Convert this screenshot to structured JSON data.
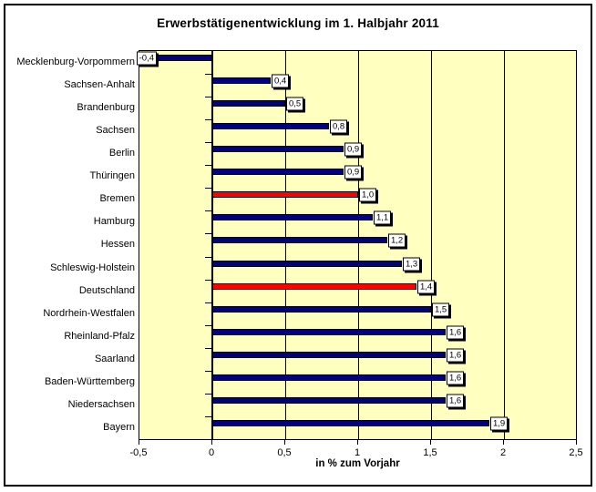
{
  "chart_data": {
    "type": "bar",
    "orientation": "horizontal",
    "title": "Erwerbstätigenentwicklung im 1. Halbjahr 2011",
    "xlabel": "in % zum Vorjahr",
    "xlim": [
      -0.5,
      2.5
    ],
    "grid": "vertical-major",
    "legend_position": "none",
    "xticks": [
      {
        "value": -0.5,
        "label": "-0,5"
      },
      {
        "value": 0,
        "label": "0"
      },
      {
        "value": 0.5,
        "label": "0,5"
      },
      {
        "value": 1,
        "label": "1"
      },
      {
        "value": 1.5,
        "label": "1,5"
      },
      {
        "value": 2,
        "label": "2"
      },
      {
        "value": 2.5,
        "label": "2,5"
      }
    ],
    "grid_values": [
      0.5,
      1,
      1.5,
      2
    ],
    "bars": [
      {
        "category": "Mecklenburg-Vorpommern",
        "value": -0.4,
        "label": "-0,4",
        "color": "#000080"
      },
      {
        "category": "Sachsen-Anhalt",
        "value": 0.4,
        "label": "0,4",
        "color": "#000080"
      },
      {
        "category": "Brandenburg",
        "value": 0.5,
        "label": "0,5",
        "color": "#000080"
      },
      {
        "category": "Sachsen",
        "value": 0.8,
        "label": "0,8",
        "color": "#000080"
      },
      {
        "category": "Berlin",
        "value": 0.9,
        "label": "0,9",
        "color": "#000080"
      },
      {
        "category": "Thüringen",
        "value": 0.9,
        "label": "0,9",
        "color": "#000080"
      },
      {
        "category": "Bremen",
        "value": 1.0,
        "label": "1,0",
        "color": "#FF0000"
      },
      {
        "category": "Hamburg",
        "value": 1.1,
        "label": "1,1",
        "color": "#000080"
      },
      {
        "category": "Hessen",
        "value": 1.2,
        "label": "1,2",
        "color": "#000080"
      },
      {
        "category": "Schleswig-Holstein",
        "value": 1.3,
        "label": "1,3",
        "color": "#000080"
      },
      {
        "category": "Deutschland",
        "value": 1.4,
        "label": "1,4",
        "color": "#FF0000"
      },
      {
        "category": "Nordrhein-Westfalen",
        "value": 1.5,
        "label": "1,5",
        "color": "#000080"
      },
      {
        "category": "Rheinland-Pfalz",
        "value": 1.6,
        "label": "1,6",
        "color": "#000080"
      },
      {
        "category": "Saarland",
        "value": 1.6,
        "label": "1,6",
        "color": "#000080"
      },
      {
        "category": "Baden-Württemberg",
        "value": 1.6,
        "label": "1,6",
        "color": "#000080"
      },
      {
        "category": "Niedersachsen",
        "value": 1.6,
        "label": "1,6",
        "color": "#000080"
      },
      {
        "category": "Bayern",
        "value": 1.9,
        "label": "1,9",
        "color": "#000080"
      }
    ],
    "colors": {
      "bar_default": "#000080",
      "bar_highlight": "#FF0000",
      "plot_background": "#FFFFC0",
      "gridline": "#000000",
      "axis": "#000000",
      "chart_border": "#000000",
      "data_label_bg": "#FFFFFF",
      "data_label_shadow": "#000000"
    }
  }
}
